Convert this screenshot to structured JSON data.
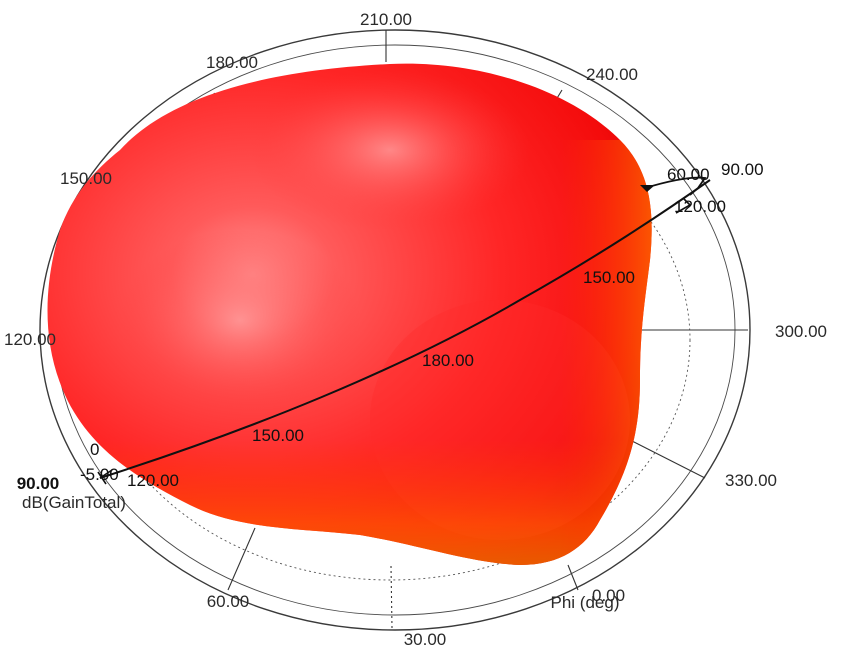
{
  "chart_data": {
    "type": "polar-3d",
    "quantity_label": "dB(GainTotal)",
    "phi_axis_label": "Phi (deg)",
    "phi_ticks": [
      "210.00",
      "240.00",
      "180.00",
      "150.00",
      "120.00",
      "300.00",
      "330.00",
      "0.00",
      "30.00",
      "60.00"
    ],
    "theta_ticks_upper": [
      "60.00",
      "90.00",
      "120.00",
      "150.00"
    ],
    "theta_ticks_main": [
      "180.00",
      "150.00",
      "120.00",
      "90.00"
    ],
    "gain_ticks": [
      "0",
      "-5.00"
    ],
    "colors": {
      "surface_main": "#ff1f1f",
      "surface_highlight": "#ff9a9a",
      "surface_shadow": "#e00000",
      "surface_orange": "#ff7a00",
      "grid": "#333333"
    },
    "grid": true
  }
}
